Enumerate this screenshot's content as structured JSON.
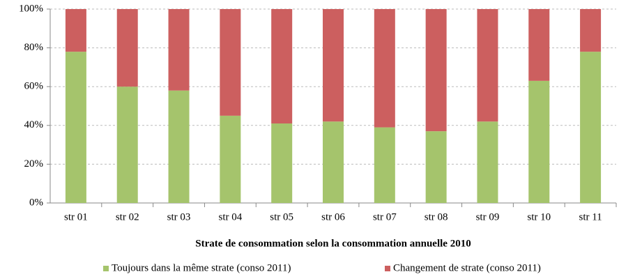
{
  "chart_data": {
    "type": "stacked_bar",
    "xlabel": "Strate  de consommation selon la consommation annuelle 2010",
    "categories": [
      "str 01",
      "str 02",
      "str 03",
      "str 04",
      "str 05",
      "str 06",
      "str 07",
      "str 08",
      "str 09",
      "str 10",
      "str 11"
    ],
    "series": [
      {
        "name": "Toujours dans la même strate (conso 2011)",
        "color": "#a5c46c",
        "values": [
          78,
          60,
          58,
          45,
          41,
          42,
          39,
          37,
          42,
          63,
          78
        ]
      },
      {
        "name": "Changement de strate (conso 2011)",
        "color": "#cc5f5f",
        "values": [
          22,
          40,
          42,
          55,
          59,
          58,
          61,
          63,
          58,
          37,
          22
        ]
      }
    ],
    "ylim": [
      0,
      100
    ],
    "yticks": [
      {
        "value": 0,
        "label": "0%"
      },
      {
        "value": 20,
        "label": "20%"
      },
      {
        "value": 40,
        "label": "40%"
      },
      {
        "value": 60,
        "label": "60%"
      },
      {
        "value": 80,
        "label": "80%"
      },
      {
        "value": 100,
        "label": "100%"
      }
    ],
    "grid": true,
    "legend": "bottom"
  }
}
